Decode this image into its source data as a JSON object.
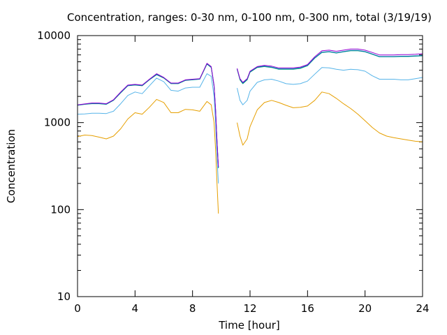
{
  "chart_data": {
    "type": "line",
    "title": "Concentration, ranges: 0-30 nm, 0-100 nm, 0-300 nm, total (3/19/19)",
    "xlabel": "Time [hour]",
    "ylabel": "Concentration",
    "xlim": [
      0,
      24
    ],
    "ylim": [
      10,
      10000
    ],
    "y_scale": "log",
    "grid": false,
    "legend": "none",
    "x_ticks": [
      0,
      4,
      8,
      12,
      16,
      20,
      24
    ],
    "x_tick_labels": [
      "0",
      "4",
      "8",
      "12",
      "16",
      "20",
      "24"
    ],
    "y_ticks": [
      10,
      100,
      1000,
      10000
    ],
    "y_tick_labels": [
      "10",
      "100",
      "1000",
      "10000"
    ],
    "series": [
      {
        "color": "#e69f00",
        "x": [
          0,
          0.5,
          1,
          1.5,
          2,
          2.5,
          3,
          3.5,
          4,
          4.5,
          5,
          5.5,
          6,
          6.5,
          7,
          7.5,
          8,
          8.5,
          9,
          9.3,
          9.5,
          9.6,
          9.7,
          9.8,
          11.1,
          11.3,
          11.5,
          11.8,
          12,
          12.5,
          13,
          13.5,
          14,
          14.5,
          15,
          15.5,
          16,
          16.5,
          17,
          17.5,
          18,
          18.5,
          19,
          19.5,
          20,
          20.5,
          21,
          21.5,
          22,
          22.5,
          23,
          23.5,
          24
        ],
        "y": [
          690,
          720,
          710,
          680,
          650,
          700,
          850,
          1100,
          1300,
          1250,
          1500,
          1850,
          1700,
          1300,
          1300,
          1420,
          1400,
          1350,
          1750,
          1600,
          1000,
          500,
          200,
          90,
          1000,
          700,
          550,
          650,
          900,
          1400,
          1700,
          1800,
          1700,
          1580,
          1480,
          1500,
          1550,
          1800,
          2250,
          2150,
          1900,
          1650,
          1450,
          1250,
          1050,
          880,
          760,
          700,
          670,
          650,
          630,
          610,
          600
        ]
      },
      {
        "color": "#56b4e9",
        "x": [
          0,
          0.5,
          1,
          1.5,
          2,
          2.5,
          3,
          3.5,
          4,
          4.5,
          5,
          5.5,
          6,
          6.5,
          7,
          7.5,
          8,
          8.5,
          9,
          9.3,
          9.5,
          9.6,
          9.7,
          9.8,
          11.1,
          11.3,
          11.5,
          11.8,
          12,
          12.5,
          13,
          13.5,
          14,
          14.5,
          15,
          15.5,
          16,
          16.5,
          17,
          17.5,
          18,
          18.5,
          19,
          19.5,
          20,
          20.5,
          21,
          21.5,
          22,
          22.5,
          23,
          23.5,
          24
        ],
        "y": [
          1250,
          1260,
          1280,
          1280,
          1270,
          1350,
          1650,
          2050,
          2250,
          2150,
          2650,
          3250,
          2950,
          2350,
          2300,
          2500,
          2550,
          2550,
          3650,
          3400,
          2000,
          1000,
          400,
          200,
          2500,
          1800,
          1600,
          1800,
          2300,
          2900,
          3100,
          3150,
          3000,
          2800,
          2750,
          2800,
          3000,
          3600,
          4300,
          4250,
          4100,
          4000,
          4100,
          4050,
          3900,
          3450,
          3150,
          3150,
          3150,
          3100,
          3100,
          3200,
          3300
        ]
      },
      {
        "color": "#009e73",
        "x": [
          0,
          0.5,
          1,
          1.5,
          2,
          2.5,
          3,
          3.5,
          4,
          4.5,
          5,
          5.5,
          6,
          6.5,
          7,
          7.5,
          8,
          8.5,
          9,
          9.3,
          9.5,
          9.6,
          9.7,
          9.8,
          11.1,
          11.3,
          11.5,
          11.8,
          12,
          12.5,
          13,
          13.5,
          14,
          14.5,
          15,
          15.5,
          16,
          16.5,
          17,
          17.5,
          18,
          18.5,
          19,
          19.5,
          20,
          20.5,
          21,
          21.5,
          22,
          22.5,
          23,
          23.5,
          24
        ],
        "y": [
          1580,
          1620,
          1650,
          1650,
          1620,
          1800,
          2200,
          2650,
          2700,
          2650,
          3100,
          3550,
          3250,
          2800,
          2800,
          3050,
          3100,
          3150,
          4700,
          4300,
          2600,
          1400,
          600,
          300,
          4100,
          3100,
          2800,
          3100,
          3800,
          4300,
          4400,
          4300,
          4100,
          4100,
          4100,
          4200,
          4500,
          5500,
          6400,
          6500,
          6300,
          6500,
          6700,
          6700,
          6500,
          6100,
          5700,
          5700,
          5700,
          5750,
          5750,
          5800,
          5850
        ]
      },
      {
        "color": "#0072b2",
        "x": [
          0,
          0.5,
          1,
          1.5,
          2,
          2.5,
          3,
          3.5,
          4,
          4.5,
          5,
          5.5,
          6,
          6.5,
          7,
          7.5,
          8,
          8.5,
          9,
          9.3,
          9.5,
          9.6,
          9.7,
          9.8,
          11.1,
          11.3,
          11.5,
          11.8,
          12,
          12.5,
          13,
          13.5,
          14,
          14.5,
          15,
          15.5,
          16,
          16.5,
          17,
          17.5,
          18,
          18.5,
          19,
          19.5,
          20,
          20.5,
          21,
          21.5,
          22,
          22.5,
          23,
          23.5,
          24
        ],
        "y": [
          1590,
          1630,
          1660,
          1660,
          1630,
          1810,
          2210,
          2660,
          2720,
          2670,
          3120,
          3580,
          3280,
          2820,
          2820,
          3070,
          3120,
          3170,
          4750,
          4350,
          2650,
          1420,
          610,
          305,
          4150,
          3150,
          2850,
          3150,
          3850,
          4350,
          4450,
          4350,
          4150,
          4150,
          4150,
          4250,
          4550,
          5550,
          6450,
          6550,
          6350,
          6550,
          6750,
          6750,
          6550,
          6150,
          5750,
          5750,
          5750,
          5800,
          5800,
          5850,
          5900
        ]
      },
      {
        "color": "#9400d3",
        "x": [
          0,
          0.5,
          1,
          1.5,
          2,
          2.5,
          3,
          3.5,
          4,
          4.5,
          5,
          5.5,
          6,
          6.5,
          7,
          7.5,
          8,
          8.5,
          9,
          9.3,
          9.5,
          9.6,
          9.7,
          9.8,
          11.1,
          11.3,
          11.5,
          11.8,
          12,
          12.5,
          13,
          13.5,
          14,
          14.5,
          15,
          15.5,
          16,
          16.5,
          17,
          17.5,
          18,
          18.5,
          19,
          19.5,
          20,
          20.5,
          21,
          21.5,
          22,
          22.5,
          23,
          23.5,
          24
        ],
        "y": [
          1600,
          1640,
          1680,
          1680,
          1650,
          1830,
          2250,
          2700,
          2750,
          2700,
          3150,
          3650,
          3300,
          2850,
          2850,
          3100,
          3150,
          3200,
          4800,
          4400,
          2700,
          1450,
          620,
          310,
          4200,
          3200,
          2900,
          3200,
          3900,
          4400,
          4550,
          4450,
          4250,
          4250,
          4250,
          4350,
          4650,
          5700,
          6700,
          6800,
          6600,
          6800,
          7000,
          7000,
          6800,
          6400,
          6000,
          6000,
          6000,
          6050,
          6050,
          6100,
          6200
        ]
      }
    ]
  }
}
